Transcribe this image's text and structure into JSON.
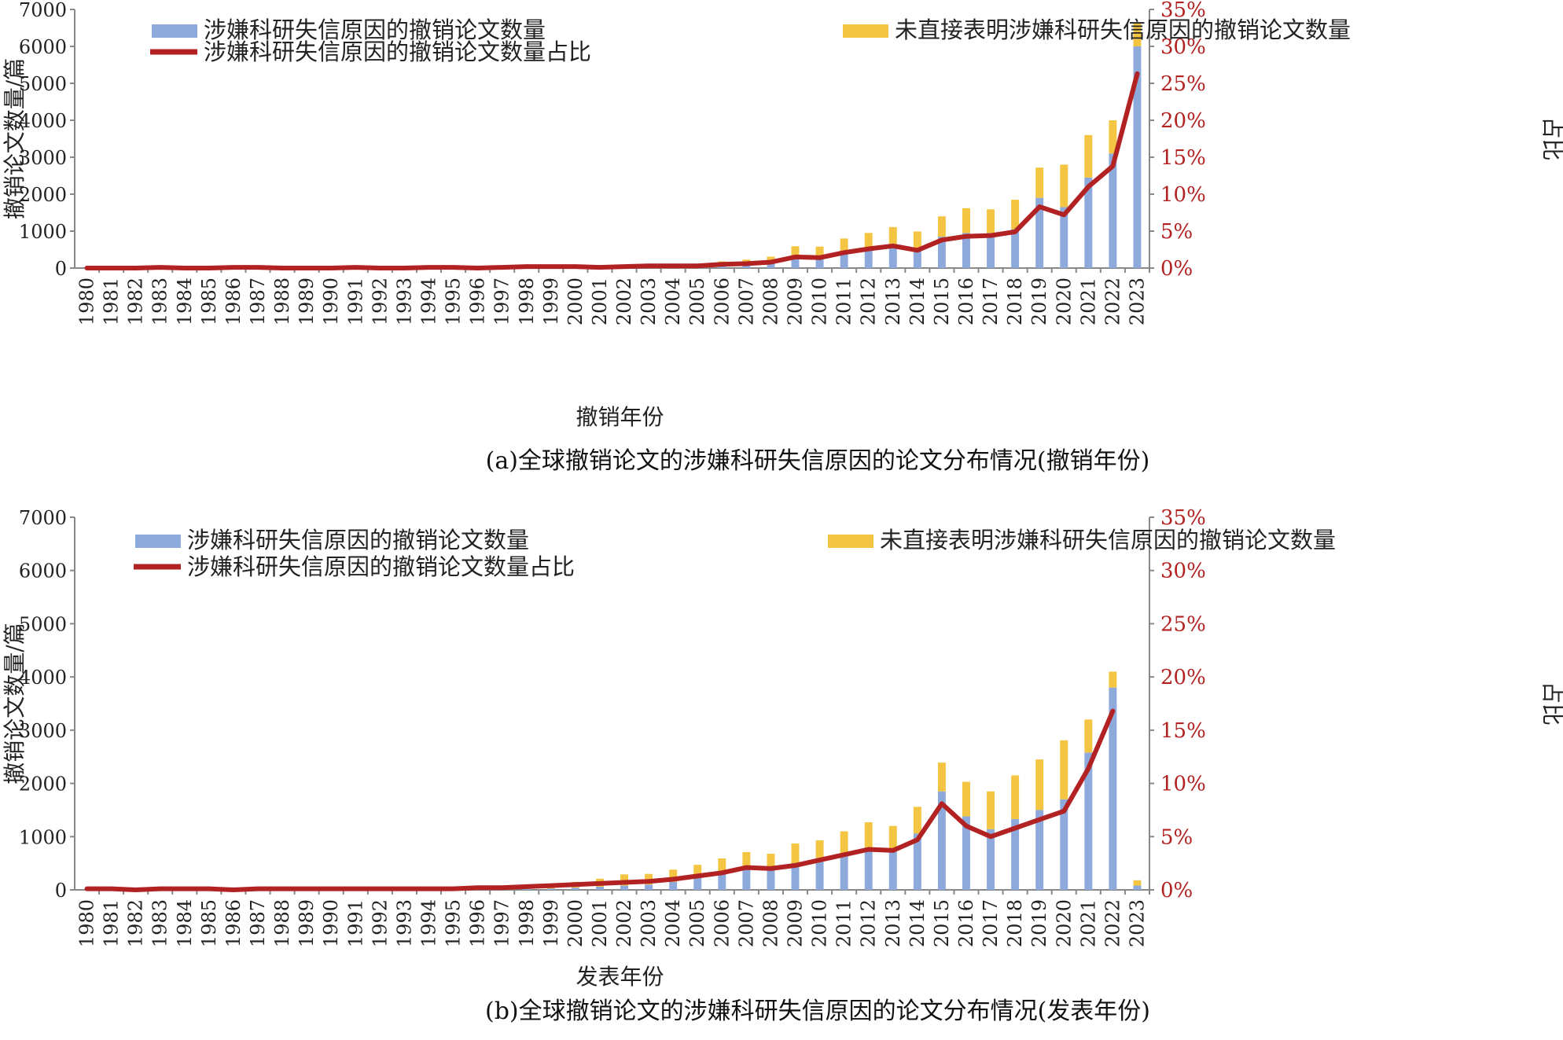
{
  "colors": {
    "blue_bar": "#8ea9db",
    "yellow_bar": "#f4c542",
    "line": "#b22222",
    "axis": "#888888",
    "text": "#222222"
  },
  "chart_data": [
    {
      "type": "bar",
      "stacked": true,
      "caption": "(a)全球撤销论文的涉嫌科研失信原因的论文分布情况(撤销年份)",
      "xlabel": "撤销年份",
      "ylabel": "撤销论文数量/篇",
      "y2label": "占比",
      "ylim": [
        0,
        7000
      ],
      "yticks": [
        0,
        1000,
        2000,
        3000,
        4000,
        5000,
        6000,
        7000
      ],
      "y2lim": [
        0,
        35
      ],
      "y2ticks": [
        "0%",
        "5%",
        "10%",
        "15%",
        "20%",
        "25%",
        "30%",
        "35%"
      ],
      "legend": {
        "blue": "涉嫌科研失信原因的撤销论文数量",
        "yellow": "未直接表明涉嫌科研失信原因的撤销论文数量",
        "line": "涉嫌科研失信原因的撤销论文数量占比"
      },
      "categories": [
        "1980",
        "1981",
        "1982",
        "1983",
        "1984",
        "1985",
        "1986",
        "1987",
        "1988",
        "1989",
        "1990",
        "1991",
        "1992",
        "1993",
        "1994",
        "1995",
        "1996",
        "1997",
        "1998",
        "1999",
        "2000",
        "2001",
        "2002",
        "2003",
        "2004",
        "2005",
        "2006",
        "2007",
        "2008",
        "2009",
        "2010",
        "2011",
        "2012",
        "2013",
        "2014",
        "2015",
        "2016",
        "2017",
        "2018",
        "2019",
        "2020",
        "2021",
        "2022",
        "2023"
      ],
      "series": [
        {
          "name": "涉嫌科研失信原因的撤销论文数量",
          "kind": "bar",
          "values": [
            0,
            0,
            0,
            3,
            1,
            1,
            2,
            2,
            1,
            1,
            1,
            2,
            1,
            1,
            2,
            2,
            1,
            2,
            3,
            3,
            3,
            4,
            10,
            15,
            20,
            30,
            60,
            80,
            120,
            250,
            260,
            400,
            550,
            650,
            500,
            850,
            950,
            950,
            1050,
            1900,
            1650,
            2450,
            3100,
            6000
          ]
        },
        {
          "name": "未直接表明涉嫌科研失信原因的撤销论文数量",
          "kind": "bar",
          "values": [
            0,
            0,
            0,
            2,
            1,
            1,
            2,
            2,
            1,
            1,
            1,
            2,
            1,
            1,
            2,
            2,
            1,
            2,
            3,
            3,
            3,
            4,
            10,
            15,
            20,
            30,
            120,
            150,
            190,
            340,
            320,
            400,
            400,
            460,
            490,
            550,
            670,
            640,
            800,
            820,
            1150,
            1150,
            900,
            620
          ]
        },
        {
          "name": "涉嫌科研失信原因的撤销论文数量占比",
          "kind": "line",
          "values": [
            0.0,
            0.0,
            0.0,
            0.1,
            0.0,
            0.0,
            0.1,
            0.1,
            0.0,
            0.0,
            0.0,
            0.1,
            0.0,
            0.0,
            0.1,
            0.1,
            0.0,
            0.1,
            0.2,
            0.2,
            0.2,
            0.1,
            0.2,
            0.3,
            0.3,
            0.3,
            0.5,
            0.6,
            0.8,
            1.5,
            1.4,
            2.1,
            2.6,
            3.0,
            2.4,
            3.8,
            4.3,
            4.4,
            4.9,
            8.3,
            7.2,
            11.0,
            13.8,
            26.3
          ]
        }
      ]
    },
    {
      "type": "bar",
      "stacked": true,
      "caption": "(b)全球撤销论文的涉嫌科研失信原因的论文分布情况(发表年份)",
      "xlabel": "发表年份",
      "ylabel": "撤销论文数量/篇",
      "y2label": "占比",
      "ylim": [
        0,
        7000
      ],
      "yticks": [
        0,
        1000,
        2000,
        3000,
        4000,
        5000,
        6000,
        7000
      ],
      "y2lim": [
        0,
        35
      ],
      "y2ticks": [
        "0%",
        "5%",
        "10%",
        "15%",
        "20%",
        "25%",
        "30%",
        "35%"
      ],
      "legend": {
        "blue": "涉嫌科研失信原因的撤销论文数量",
        "yellow": "未直接表明涉嫌科研失信原因的撤销论文数量",
        "line": "涉嫌科研失信原因的撤销论文数量占比"
      },
      "categories": [
        "1980",
        "1981",
        "1982",
        "1983",
        "1984",
        "1985",
        "1986",
        "1987",
        "1988",
        "1989",
        "1990",
        "1991",
        "1992",
        "1993",
        "1994",
        "1995",
        "1996",
        "1997",
        "1998",
        "1999",
        "2000",
        "2001",
        "2002",
        "2003",
        "2004",
        "2005",
        "2006",
        "2007",
        "2008",
        "2009",
        "2010",
        "2011",
        "2012",
        "2013",
        "2014",
        "2015",
        "2016",
        "2017",
        "2018",
        "2019",
        "2020",
        "2021",
        "2022",
        "2023"
      ],
      "series": [
        {
          "name": "涉嫌科研失信原因的撤销论文数量",
          "kind": "bar",
          "values": [
            2,
            1,
            1,
            2,
            2,
            3,
            2,
            3,
            4,
            5,
            6,
            5,
            6,
            7,
            8,
            9,
            10,
            12,
            20,
            25,
            40,
            60,
            80,
            100,
            150,
            230,
            300,
            400,
            430,
            500,
            600,
            680,
            800,
            750,
            1060,
            1850,
            1380,
            1140,
            1330,
            1500,
            1700,
            2580,
            3800,
            80
          ]
        },
        {
          "name": "未直接表明涉嫌科研失信原因的撤销论文数量",
          "kind": "bar",
          "values": [
            2,
            1,
            1,
            2,
            2,
            3,
            2,
            3,
            4,
            5,
            6,
            5,
            6,
            7,
            8,
            9,
            10,
            12,
            20,
            25,
            110,
            150,
            210,
            200,
            230,
            240,
            290,
            310,
            250,
            370,
            330,
            420,
            470,
            450,
            500,
            540,
            650,
            710,
            820,
            950,
            1110,
            620,
            300,
            100
          ]
        },
        {
          "name": "涉嫌科研失信原因的撤销论文数量占比",
          "kind": "line",
          "values": [
            0.1,
            0.1,
            0.0,
            0.1,
            0.1,
            0.1,
            0.0,
            0.1,
            0.1,
            0.1,
            0.1,
            0.1,
            0.1,
            0.1,
            0.1,
            0.1,
            0.2,
            0.2,
            0.3,
            0.4,
            0.5,
            0.6,
            0.7,
            0.8,
            1.0,
            1.3,
            1.6,
            2.1,
            2.0,
            2.3,
            2.8,
            3.3,
            3.8,
            3.7,
            4.7,
            8.1,
            6.0,
            5.0,
            5.8,
            6.6,
            7.4,
            11.4,
            16.8,
            null
          ]
        }
      ]
    }
  ]
}
